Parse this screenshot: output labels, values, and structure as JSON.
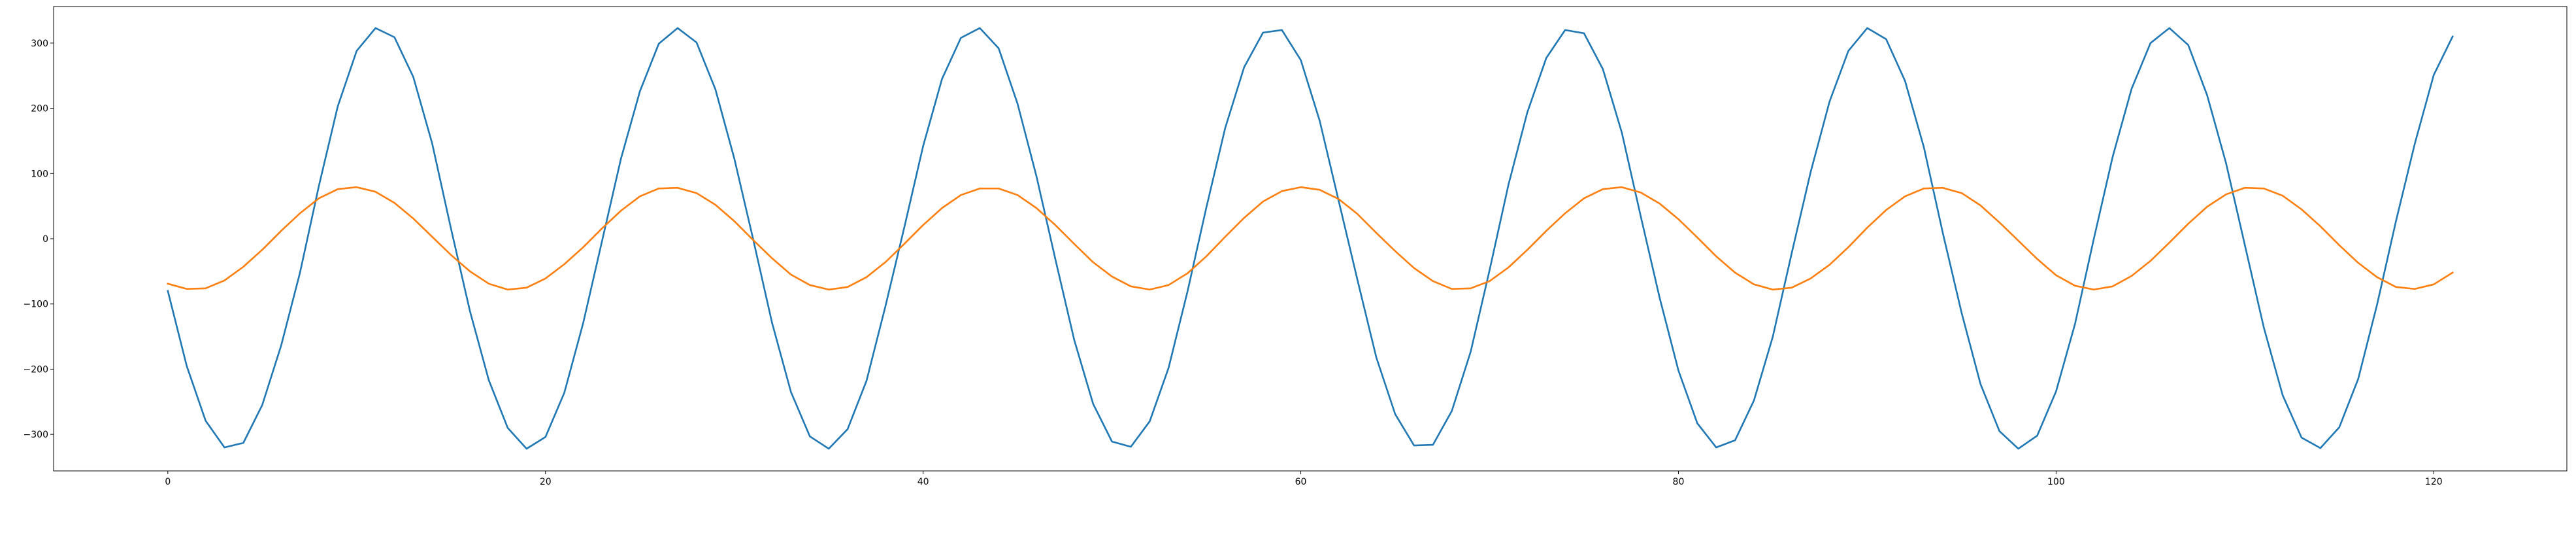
{
  "chart_data": {
    "type": "line",
    "title": "",
    "xlabel": "",
    "ylabel": "",
    "xlim": [
      -6.05,
      127.05
    ],
    "ylim": [
      -356,
      356
    ],
    "xticks": [
      0,
      20,
      40,
      60,
      80,
      100,
      120
    ],
    "yticks": [
      -300,
      -200,
      -100,
      0,
      100,
      200,
      300
    ],
    "grid": false,
    "legend": "none",
    "series": [
      {
        "color": "#1f77b4",
        "x": [
          0,
          1,
          2,
          3,
          4,
          5,
          6,
          7,
          8,
          9,
          10,
          11,
          12,
          13,
          14,
          15,
          16,
          17,
          18,
          19,
          20,
          21,
          22,
          23,
          24,
          25,
          26,
          27,
          28,
          29,
          30,
          31,
          32,
          33,
          34,
          35,
          36,
          37,
          38,
          39,
          40,
          41,
          42,
          43,
          44,
          45,
          46,
          47,
          48,
          49,
          50,
          51,
          52,
          53,
          54,
          55,
          56,
          57,
          58,
          59,
          60,
          61,
          62,
          63,
          64,
          65,
          66,
          67,
          68,
          69,
          70,
          71,
          72,
          73,
          74,
          75,
          76,
          77,
          78,
          79,
          80,
          81,
          82,
          83,
          84,
          85,
          86,
          87,
          88,
          89,
          90,
          91,
          92,
          93,
          94,
          95,
          96,
          97,
          98,
          99,
          100,
          101,
          102,
          103,
          104,
          105,
          106,
          107,
          108,
          109,
          110,
          111,
          112,
          113,
          114,
          115,
          116,
          117,
          118,
          119,
          120,
          121
        ],
        "values": [
          -80,
          -195,
          -279,
          -320,
          -313,
          -255,
          -164,
          -52,
          81,
          203,
          288,
          323,
          309,
          248,
          146,
          15,
          -111,
          -217,
          -290,
          -322,
          -304,
          -236,
          -129,
          -3,
          123,
          226,
          299,
          323,
          301,
          229,
          123,
          -1,
          -129,
          -235,
          -303,
          -322,
          -292,
          -218,
          -104,
          17,
          142,
          245,
          308,
          323,
          292,
          207,
          96,
          -31,
          -155,
          -253,
          -311,
          -319,
          -280,
          -198,
          -81,
          48,
          170,
          263,
          316,
          320,
          274,
          181,
          59,
          -63,
          -182,
          -269,
          -317,
          -316,
          -264,
          -173,
          -48,
          83,
          194,
          277,
          320,
          315,
          260,
          163,
          35,
          -90,
          -202,
          -283,
          -320,
          -309,
          -248,
          -150,
          -22,
          102,
          210,
          288,
          323,
          306,
          242,
          140,
          9,
          -114,
          -223,
          -295,
          -322,
          -302,
          -234,
          -131,
          0,
          126,
          230,
          300,
          323,
          297,
          220,
          116,
          -10,
          -136,
          -240,
          -305,
          -321,
          -289,
          -215,
          -101,
          27,
          146,
          251,
          310
        ]
      },
      {
        "color": "#ff7f0e",
        "x": [
          0,
          1,
          2,
          3,
          4,
          5,
          6,
          7,
          8,
          9,
          10,
          11,
          12,
          13,
          14,
          15,
          16,
          17,
          18,
          19,
          20,
          21,
          22,
          23,
          24,
          25,
          26,
          27,
          28,
          29,
          30,
          31,
          32,
          33,
          34,
          35,
          36,
          37,
          38,
          39,
          40,
          41,
          42,
          43,
          44,
          45,
          46,
          47,
          48,
          49,
          50,
          51,
          52,
          53,
          54,
          55,
          56,
          57,
          58,
          59,
          60,
          61,
          62,
          63,
          64,
          65,
          66,
          67,
          68,
          69,
          70,
          71,
          72,
          73,
          74,
          75,
          76,
          77,
          78,
          79,
          80,
          81,
          82,
          83,
          84,
          85,
          86,
          87,
          88,
          89,
          90,
          91,
          92,
          93,
          94,
          95,
          96,
          97,
          98,
          99,
          100,
          101,
          102,
          103,
          104,
          105,
          106,
          107,
          108,
          109,
          110,
          111,
          112,
          113,
          114,
          115,
          116,
          117,
          118,
          119,
          120,
          121
        ],
        "values": [
          -69,
          -77,
          -76,
          -64,
          -43,
          -17,
          12,
          39,
          62,
          76,
          79,
          72,
          55,
          31,
          3,
          -25,
          -50,
          -69,
          -78,
          -75,
          -61,
          -39,
          -13,
          16,
          43,
          65,
          77,
          78,
          70,
          52,
          27,
          -2,
          -30,
          -55,
          -71,
          -78,
          -74,
          -59,
          -36,
          -8,
          21,
          47,
          67,
          77,
          77,
          67,
          47,
          21,
          -8,
          -36,
          -58,
          -73,
          -78,
          -71,
          -53,
          -27,
          3,
          32,
          57,
          73,
          79,
          75,
          61,
          38,
          9,
          -19,
          -45,
          -65,
          -77,
          -76,
          -65,
          -44,
          -17,
          12,
          39,
          62,
          76,
          79,
          71,
          54,
          30,
          2,
          -27,
          -52,
          -70,
          -78,
          -75,
          -61,
          -40,
          -13,
          17,
          44,
          65,
          77,
          78,
          70,
          51,
          25,
          -3,
          -31,
          -56,
          -72,
          -78,
          -73,
          -57,
          -34,
          -6,
          23,
          49,
          68,
          78,
          77,
          66,
          45,
          19,
          -10,
          -37,
          -59,
          -74,
          -77,
          -70,
          -52
        ]
      }
    ]
  }
}
